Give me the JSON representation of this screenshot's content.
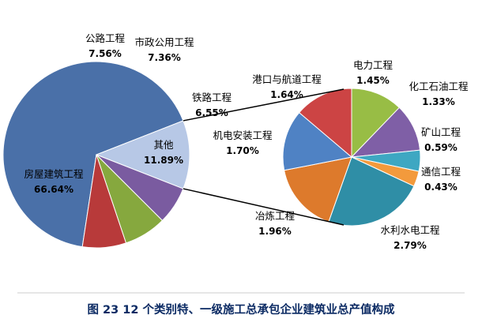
{
  "caption": "图 23 12 个类别特、一级施工总承包企业建筑业总产值构成",
  "chart_data": [
    {
      "type": "pie",
      "slices": [
        {
          "name": "房屋建筑工程",
          "value": 66.64,
          "label": "66.64%",
          "color": "#4a70a8"
        },
        {
          "name": "其他",
          "value": 11.89,
          "label": "11.89%",
          "color": "#b7c8e6"
        },
        {
          "name": "铁路工程",
          "value": 6.55,
          "label": "6.55%",
          "color": "#7a5ba0"
        },
        {
          "name": "市政公用工程",
          "value": 7.36,
          "label": "7.36%",
          "color": "#86a83e"
        },
        {
          "name": "公路工程",
          "value": 7.56,
          "label": "7.56%",
          "color": "#b83a3a"
        }
      ]
    },
    {
      "type": "pie",
      "slices": [
        {
          "name": "电力工程",
          "value": 1.45,
          "label": "1.45%",
          "color": "#98bd45"
        },
        {
          "name": "化工石油工程",
          "value": 1.33,
          "label": "1.33%",
          "color": "#7f5fa6"
        },
        {
          "name": "矿山工程",
          "value": 0.59,
          "label": "0.59%",
          "color": "#3ea7c2"
        },
        {
          "name": "通信工程",
          "value": 0.43,
          "label": "0.43%",
          "color": "#f39a3c"
        },
        {
          "name": "水利水电工程",
          "value": 2.79,
          "label": "2.79%",
          "color": "#2f8ea6"
        },
        {
          "name": "冶炼工程",
          "value": 1.96,
          "label": "1.96%",
          "color": "#dd7a2c"
        },
        {
          "name": "机电安装工程",
          "value": 1.7,
          "label": "1.70%",
          "color": "#4f82c4"
        },
        {
          "name": "港口与航道工程",
          "value": 1.64,
          "label": "1.64%",
          "color": "#cc4444"
        }
      ]
    }
  ]
}
